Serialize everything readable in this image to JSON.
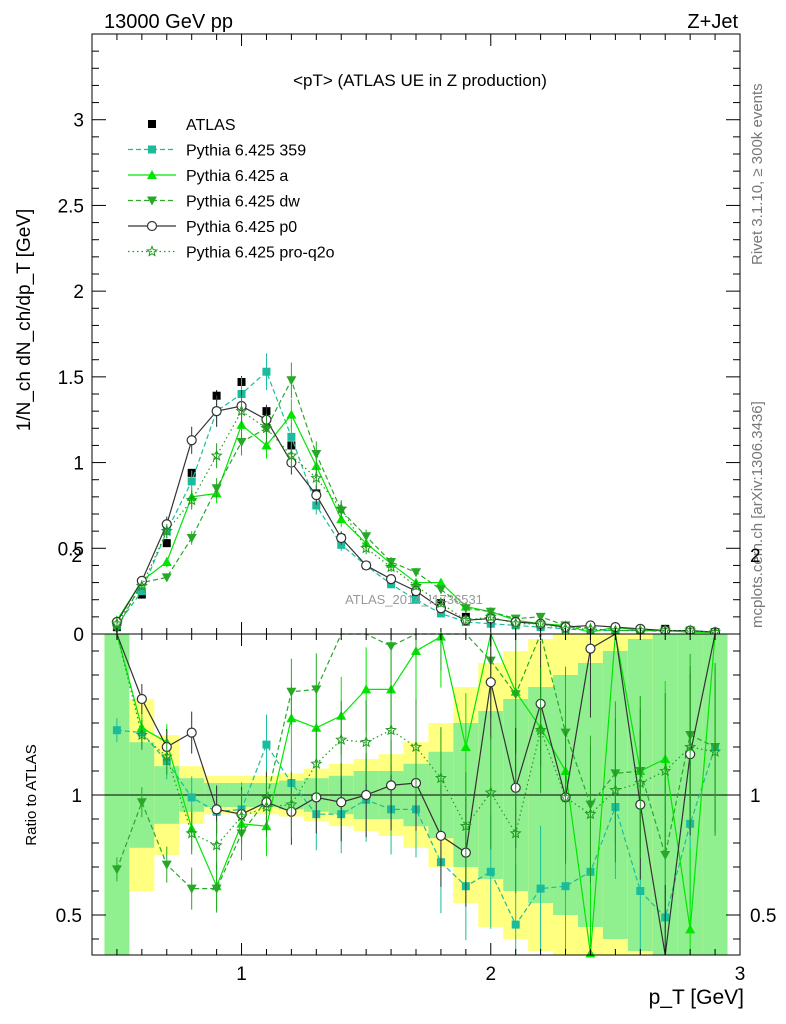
{
  "header": {
    "left": "13000 GeV pp",
    "right": "Z+Jet",
    "side_top": "Rivet 3.1.10, ≥ 300k events",
    "side_bottom": "mcplots.cern.ch [arXiv:1306.3436]",
    "watermark": "ATLAS_2014_I1736531"
  },
  "chart_data": [
    {
      "type": "line",
      "title": "<pT> (ATLAS UE in Z production)",
      "ylabel": "1/N_ch dN_ch/dp_T [GeV]",
      "xlim": [
        0.4,
        3.0
      ],
      "ylim": [
        0,
        3.5
      ],
      "x_ticks": [
        "1",
        "2",
        "3"
      ],
      "y_ticks": [
        "0",
        "0.5",
        "1",
        "1.5",
        "2",
        "2.5",
        "3"
      ],
      "x": [
        0.5,
        0.6,
        0.7,
        0.8,
        0.9,
        1.0,
        1.1,
        1.2,
        1.3,
        1.4,
        1.5,
        1.6,
        1.7,
        1.8,
        1.9,
        2.0,
        2.1,
        2.2,
        2.3,
        2.4,
        2.5,
        2.6,
        2.7,
        2.8,
        2.9
      ],
      "legend_position": "top-left",
      "series": [
        {
          "name": "ATLAS",
          "color": "#000000",
          "marker": "square",
          "values": [
            0.04,
            0.23,
            0.53,
            0.94,
            1.39,
            1.47,
            1.3,
            1.1,
            0.82,
            0.56,
            0.4,
            0.31,
            0.24,
            0.18,
            0.1,
            0.08,
            0.06,
            0.05,
            0.04,
            0.03,
            0.02,
            0.02,
            0.03,
            0.02,
            0.01
          ]
        },
        {
          "name": "Pythia 6.425 359",
          "color": "#1abc9c",
          "marker": "square",
          "dash": "5,3",
          "values": [
            0.05,
            0.25,
            0.6,
            0.89,
            1.3,
            1.4,
            1.53,
            1.15,
            0.75,
            0.52,
            0.4,
            0.29,
            0.2,
            0.12,
            0.07,
            0.06,
            0.05,
            0.04,
            0.03,
            0.02,
            0.02,
            0.02,
            0.015,
            0.02,
            0.01
          ]
        },
        {
          "name": "Pythia 6.425 a",
          "color": "#00e600",
          "marker": "triangle",
          "dash": "",
          "values": [
            0.08,
            0.31,
            0.42,
            0.8,
            0.82,
            1.22,
            1.1,
            1.28,
            0.98,
            0.67,
            0.53,
            0.41,
            0.3,
            0.3,
            0.16,
            0.13,
            0.08,
            0.06,
            0.05,
            0.01,
            0.04,
            0.02,
            0.02,
            0.01,
            0.01
          ]
        },
        {
          "name": "Pythia 6.425 dw",
          "color": "#27a827",
          "marker": "triangle-down",
          "dash": "5,3",
          "values": [
            0.03,
            0.3,
            0.33,
            0.56,
            0.85,
            1.12,
            1.2,
            1.48,
            1.05,
            0.72,
            0.57,
            0.42,
            0.36,
            0.26,
            0.15,
            0.13,
            0.09,
            0.1,
            0.05,
            0.03,
            0.02,
            0.02,
            0.02,
            0.02,
            0.01
          ]
        },
        {
          "name": "Pythia 6.425 p0",
          "color": "#333333",
          "marker": "circle-open",
          "dash": "",
          "values": [
            0.07,
            0.31,
            0.64,
            1.13,
            1.3,
            1.33,
            1.25,
            1.0,
            0.81,
            0.56,
            0.4,
            0.32,
            0.25,
            0.15,
            0.08,
            0.09,
            0.07,
            0.06,
            0.04,
            0.05,
            0.04,
            0.03,
            0.02,
            0.02,
            0.01
          ]
        },
        {
          "name": "Pythia 6.425 pro-q2o",
          "color": "#1f9b1f",
          "marker": "star-open",
          "dash": "1.5,3",
          "values": [
            0.06,
            0.28,
            0.6,
            0.78,
            1.04,
            1.3,
            1.2,
            1.04,
            0.91,
            0.73,
            0.5,
            0.39,
            0.28,
            0.18,
            0.08,
            0.1,
            0.06,
            0.06,
            0.03,
            0.03,
            0.02,
            0.02,
            0.02,
            0.02,
            0.01
          ]
        }
      ]
    },
    {
      "type": "line",
      "xlabel": "p_T [GeV]",
      "ylabel": "Ratio to ATLAS",
      "xlim": [
        0.4,
        3.0
      ],
      "ylim": [
        0.35,
        2.35
      ],
      "x_ticks": [
        "1",
        "2",
        "3"
      ],
      "y_ticks": [
        "0.5",
        "1",
        "2"
      ],
      "x": [
        0.5,
        0.6,
        0.7,
        0.8,
        0.9,
        1.0,
        1.1,
        1.2,
        1.3,
        1.4,
        1.5,
        1.6,
        1.7,
        1.8,
        1.9,
        2.0,
        2.1,
        2.2,
        2.3,
        2.4,
        2.5,
        2.6,
        2.7,
        2.8,
        2.9
      ],
      "band_inner": [
        0.85,
        0.22,
        0.12,
        0.07,
        0.05,
        0.05,
        0.05,
        0.06,
        0.07,
        0.08,
        0.1,
        0.1,
        0.13,
        0.18,
        0.3,
        0.35,
        0.4,
        0.45,
        0.5,
        0.55,
        0.6,
        0.65,
        0.7,
        0.75,
        0.8
      ],
      "band_outer": [
        1.0,
        0.4,
        0.25,
        0.12,
        0.08,
        0.08,
        0.08,
        0.09,
        0.11,
        0.13,
        0.15,
        0.17,
        0.22,
        0.3,
        0.45,
        0.55,
        0.6,
        0.65,
        0.7,
        0.75,
        0.8,
        0.85,
        0.9,
        0.95,
        1.0
      ],
      "series": [
        {
          "name": "Pythia 6.425 359",
          "values": [
            1.27,
            1.26,
            1.14,
            0.99,
            0.93,
            0.94,
            1.21,
            1.05,
            0.92,
            0.92,
            0.98,
            0.94,
            0.94,
            0.72,
            0.62,
            0.68,
            0.46,
            0.61,
            0.62,
            0.68,
            0.95,
            0.6,
            0.49,
            0.88,
            1.2
          ]
        },
        {
          "name": "Pythia 6.425 a",
          "values": [
            2.2,
            1.28,
            1.22,
            0.86,
            0.62,
            0.88,
            0.87,
            1.32,
            1.28,
            1.33,
            1.44,
            1.44,
            1.6,
            1.66,
            1.2,
            1.94,
            1.43,
            1.28,
            1.1,
            0.34,
            2.2,
            1.1,
            1.15,
            0.44,
            2.4
          ]
        },
        {
          "name": "Pythia 6.425 dw",
          "values": [
            0.69,
            0.97,
            0.71,
            0.61,
            0.61,
            0.84,
            0.98,
            1.43,
            1.44,
            1.86,
            1.88,
            1.62,
            1.77,
            1.73,
            2.07,
            1.56,
            1.42,
            2.29,
            1.26,
            0.96,
            1.09,
            1.1,
            0.75,
            1.25,
            1.2
          ]
        },
        {
          "name": "Pythia 6.425 p0",
          "values": [
            1.86,
            1.4,
            1.2,
            1.26,
            0.94,
            0.92,
            0.97,
            0.93,
            0.99,
            0.97,
            1.0,
            1.04,
            1.05,
            0.83,
            0.76,
            1.47,
            1.03,
            1.38,
            0.99,
            1.61,
            2.19,
            0.96,
            0.3,
            1.17,
            2.4
          ]
        },
        {
          "name": "Pythia 6.425 pro-q2o",
          "values": [
            1.88,
            1.25,
            1.16,
            0.84,
            0.79,
            0.91,
            0.95,
            0.96,
            1.13,
            1.23,
            1.22,
            1.27,
            1.2,
            1.07,
            0.87,
            1.01,
            0.84,
            1.27,
            0.99,
            0.92,
            1.02,
            1.05,
            1.1,
            1.2,
            1.18
          ]
        }
      ]
    }
  ]
}
